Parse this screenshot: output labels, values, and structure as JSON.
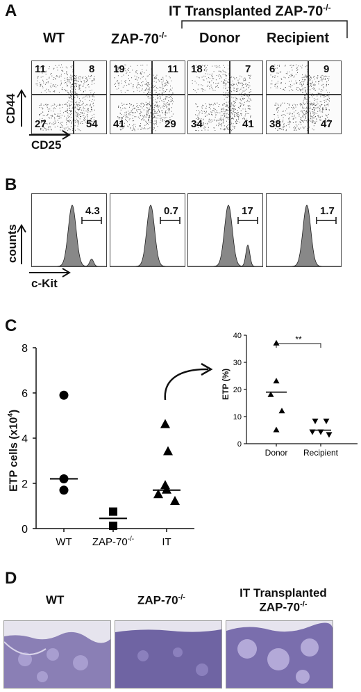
{
  "panels": {
    "A": {
      "letter": "A",
      "group_header": "IT Transplanted ZAP-70",
      "group_header_sup": "-/-",
      "columns": [
        {
          "label": "WT",
          "sup": ""
        },
        {
          "label": "ZAP-70",
          "sup": "-/-"
        },
        {
          "label": "Donor",
          "sup": ""
        },
        {
          "label": "Recipient",
          "sup": ""
        }
      ],
      "y_axis": "CD44",
      "x_axis": "CD25",
      "quadrants": [
        {
          "ul": "11",
          "ur": "8",
          "ll": "27",
          "lr": "54"
        },
        {
          "ul": "19",
          "ur": "11",
          "ll": "41",
          "lr": "29"
        },
        {
          "ul": "18",
          "ur": "7",
          "ll": "34",
          "lr": "41"
        },
        {
          "ul": "6",
          "ur": "9",
          "ll": "38",
          "lr": "47"
        }
      ]
    },
    "B": {
      "letter": "B",
      "y_axis": "counts",
      "x_axis": "c-Kit",
      "gates": [
        "4.3",
        "0.7",
        "17",
        "1.7"
      ]
    },
    "C": {
      "letter": "C",
      "ylabel": "ETP cells (x10",
      "ylabel_sup": "4",
      "ylabel_end": ")",
      "yticks": [
        "0",
        "2",
        "4",
        "6",
        "8"
      ],
      "xticks": [
        "WT",
        "ZAP-70",
        "IT"
      ],
      "xtick_sup": [
        "",
        "-/-",
        ""
      ],
      "inset": {
        "ylabel": "ETP (%)",
        "yticks": [
          "0",
          "10",
          "20",
          "30",
          "40"
        ],
        "xticks": [
          "Donor",
          "Recipient"
        ],
        "significance": "**"
      }
    },
    "D": {
      "letter": "D",
      "labels": [
        {
          "line1": "WT",
          "line2": ""
        },
        {
          "line1": "ZAP-70",
          "sup": "-/-",
          "line2": ""
        },
        {
          "line1": "IT Transplanted",
          "line2": "ZAP-70",
          "sup2": "-/-"
        }
      ]
    }
  },
  "chart_data": [
    {
      "type": "scatter",
      "title": "",
      "xlabel": "",
      "ylabel": "ETP cells (x10^4)",
      "ylim": [
        0,
        8
      ],
      "categories": [
        "WT",
        "ZAP-70-/-",
        "IT"
      ],
      "series": [
        {
          "category": "WT",
          "marker": "circle",
          "values": [
            5.9,
            2.2,
            1.7
          ],
          "mean": 2.2
        },
        {
          "category": "ZAP-70-/-",
          "marker": "square",
          "values": [
            0.75,
            0.12
          ],
          "mean": 0.45
        },
        {
          "category": "IT",
          "marker": "triangle",
          "values": [
            4.6,
            3.4,
            1.9,
            1.5,
            1.2,
            1.7
          ],
          "mean": 1.7
        }
      ]
    },
    {
      "type": "scatter",
      "title": "",
      "xlabel": "",
      "ylabel": "ETP (%)",
      "ylim": [
        0,
        40
      ],
      "categories": [
        "Donor",
        "Recipient"
      ],
      "series": [
        {
          "category": "Donor",
          "marker": "triangle",
          "values": [
            37,
            23,
            18,
            12,
            5
          ],
          "mean": 19
        },
        {
          "category": "Recipient",
          "marker": "triangle-down",
          "values": [
            8.5,
            8.5,
            4.5,
            4.5,
            3.5
          ],
          "mean": 5
        }
      ]
    }
  ]
}
